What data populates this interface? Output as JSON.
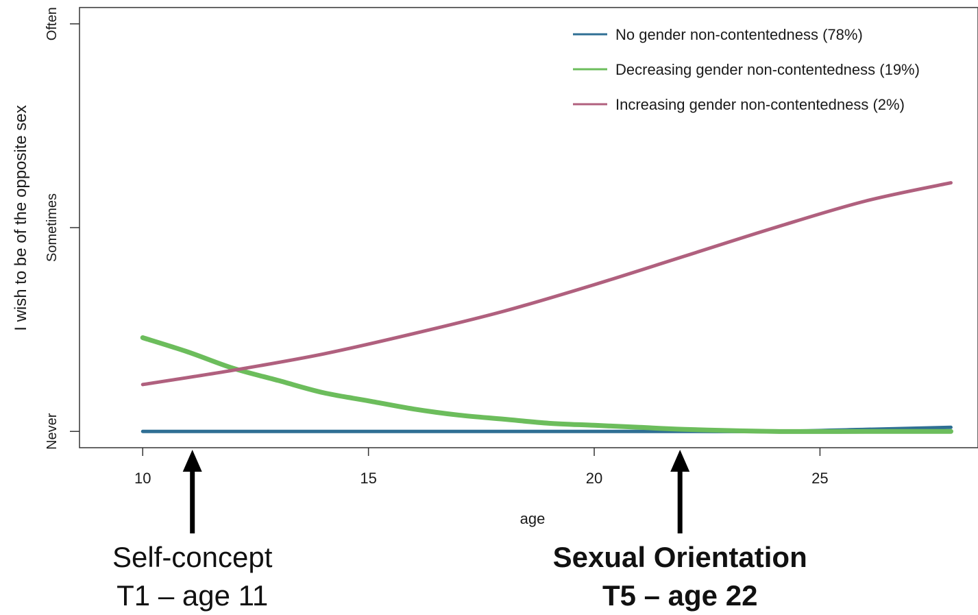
{
  "chart_data": {
    "type": "line",
    "xlabel": "age",
    "ylabel": "I wish to be of the opposite sex",
    "xlim": [
      8.6,
      28.5
    ],
    "ylim": [
      -0.08,
      2.08
    ],
    "xticks": [
      10,
      15,
      20,
      25
    ],
    "yticks": [
      {
        "value": 0,
        "label": "Never"
      },
      {
        "value": 1,
        "label": "Sometimes"
      },
      {
        "value": 2,
        "label": "Often"
      }
    ],
    "legend_position": "top-right",
    "series": [
      {
        "name": "No gender non-contentedness",
        "percent": "(78%)",
        "color": "#2f6f94",
        "x": [
          10,
          12,
          14,
          16,
          18,
          20,
          22,
          24,
          26,
          27.9
        ],
        "y": [
          0.0,
          0.0,
          0.0,
          0.0,
          0.0,
          0.0,
          0.0,
          0.0,
          0.01,
          0.02
        ]
      },
      {
        "name": "Decreasing gender non-contentedness",
        "percent": "(19%)",
        "color": "#6cbd5c",
        "x": [
          10,
          11,
          12,
          13,
          14,
          15,
          16,
          17,
          18,
          19,
          20,
          21,
          22,
          24,
          26,
          27.9
        ],
        "y": [
          0.46,
          0.39,
          0.31,
          0.25,
          0.19,
          0.15,
          0.11,
          0.08,
          0.06,
          0.04,
          0.03,
          0.02,
          0.01,
          0.0,
          0.0,
          0.0
        ]
      },
      {
        "name": "Increasing gender non-contentedness",
        "percent": "(2%)",
        "color": "#b0607e",
        "x": [
          10,
          12,
          14,
          16,
          18,
          20,
          22,
          24,
          26,
          27.9
        ],
        "y": [
          0.23,
          0.3,
          0.38,
          0.48,
          0.59,
          0.72,
          0.86,
          1.0,
          1.13,
          1.22
        ]
      }
    ]
  },
  "annotations": [
    {
      "line1": "Self-concept",
      "line2": "T1 – age 11",
      "age": 11.1,
      "bold": false
    },
    {
      "line1": "Sexual Orientation",
      "line2": "T5 – age 22",
      "age": 21.9,
      "bold": true
    }
  ]
}
